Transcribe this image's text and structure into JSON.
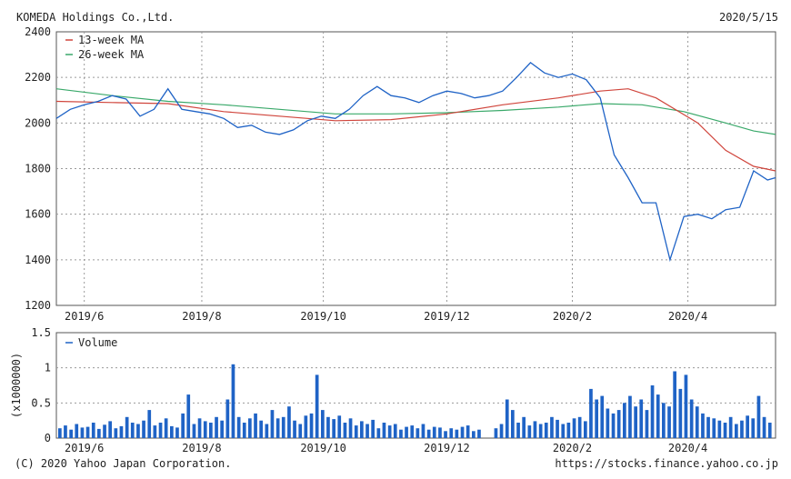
{
  "header": {
    "company": "KOMEDA Holdings Co.,Ltd.",
    "date": "2020/5/15"
  },
  "footer": {
    "copyright": "(C) 2020 Yahoo Japan Corporation.",
    "url": "https://stocks.finance.yahoo.co.jp"
  },
  "colors": {
    "price": "#1f63c6",
    "ma13": "#d0453c",
    "ma26": "#3aa96a",
    "volume": "#1f63c6",
    "grid": "#9a9a9a"
  },
  "chart_data": [
    {
      "type": "line",
      "title": "",
      "x_range": [
        "2019-05-20",
        "2020-05-15"
      ],
      "ylim": [
        1200,
        2400
      ],
      "yticks": [
        1200,
        1400,
        1600,
        1800,
        2000,
        2200,
        2400
      ],
      "x_tick_labels": [
        {
          "label": "2019/6",
          "date": "2019-06-03"
        },
        {
          "label": "2019/8",
          "date": "2019-08-01"
        },
        {
          "label": "2019/10",
          "date": "2019-10-01"
        },
        {
          "label": "2019/12",
          "date": "2019-12-02"
        },
        {
          "label": "2020/2",
          "date": "2020-02-03"
        },
        {
          "label": "2020/4",
          "date": "2020-04-01"
        }
      ],
      "grid": true,
      "legend_position": "top-left",
      "series": [
        {
          "name": "",
          "kind": "price",
          "points": [
            [
              "2019-05-20",
              2020
            ],
            [
              "2019-05-27",
              2060
            ],
            [
              "2019-06-03",
              2080
            ],
            [
              "2019-06-10",
              2095
            ],
            [
              "2019-06-17",
              2120
            ],
            [
              "2019-06-24",
              2105
            ],
            [
              "2019-07-01",
              2030
            ],
            [
              "2019-07-08",
              2060
            ],
            [
              "2019-07-15",
              2150
            ],
            [
              "2019-07-22",
              2060
            ],
            [
              "2019-07-29",
              2050
            ],
            [
              "2019-08-05",
              2040
            ],
            [
              "2019-08-12",
              2020
            ],
            [
              "2019-08-19",
              1980
            ],
            [
              "2019-08-26",
              1990
            ],
            [
              "2019-09-02",
              1960
            ],
            [
              "2019-09-09",
              1950
            ],
            [
              "2019-09-16",
              1970
            ],
            [
              "2019-09-23",
              2010
            ],
            [
              "2019-09-30",
              2030
            ],
            [
              "2019-10-07",
              2020
            ],
            [
              "2019-10-14",
              2060
            ],
            [
              "2019-10-21",
              2120
            ],
            [
              "2019-10-28",
              2160
            ],
            [
              "2019-11-04",
              2120
            ],
            [
              "2019-11-11",
              2110
            ],
            [
              "2019-11-18",
              2090
            ],
            [
              "2019-11-25",
              2120
            ],
            [
              "2019-12-02",
              2140
            ],
            [
              "2019-12-09",
              2130
            ],
            [
              "2019-12-16",
              2110
            ],
            [
              "2019-12-23",
              2120
            ],
            [
              "2019-12-30",
              2140
            ],
            [
              "2020-01-06",
              2200
            ],
            [
              "2020-01-13",
              2265
            ],
            [
              "2020-01-20",
              2220
            ],
            [
              "2020-01-27",
              2200
            ],
            [
              "2020-02-03",
              2215
            ],
            [
              "2020-02-10",
              2190
            ],
            [
              "2020-02-17",
              2110
            ],
            [
              "2020-02-24",
              1860
            ],
            [
              "2020-03-02",
              1760
            ],
            [
              "2020-03-09",
              1650
            ],
            [
              "2020-03-16",
              1650
            ],
            [
              "2020-03-23",
              1400
            ],
            [
              "2020-03-30",
              1590
            ],
            [
              "2020-04-06",
              1600
            ],
            [
              "2020-04-13",
              1580
            ],
            [
              "2020-04-20",
              1620
            ],
            [
              "2020-04-27",
              1630
            ],
            [
              "2020-05-04",
              1790
            ],
            [
              "2020-05-11",
              1750
            ],
            [
              "2020-05-15",
              1760
            ]
          ]
        },
        {
          "name": "13-week MA",
          "kind": "ma13",
          "points": [
            [
              "2019-05-20",
              2095
            ],
            [
              "2019-06-17",
              2090
            ],
            [
              "2019-07-15",
              2085
            ],
            [
              "2019-08-12",
              2050
            ],
            [
              "2019-09-09",
              2030
            ],
            [
              "2019-10-07",
              2010
            ],
            [
              "2019-11-04",
              2015
            ],
            [
              "2019-12-02",
              2040
            ],
            [
              "2019-12-30",
              2080
            ],
            [
              "2020-01-27",
              2110
            ],
            [
              "2020-02-17",
              2140
            ],
            [
              "2020-03-02",
              2150
            ],
            [
              "2020-03-16",
              2110
            ],
            [
              "2020-04-06",
              2000
            ],
            [
              "2020-04-20",
              1880
            ],
            [
              "2020-05-04",
              1810
            ],
            [
              "2020-05-15",
              1790
            ]
          ]
        },
        {
          "name": "26-week MA",
          "kind": "ma26",
          "points": [
            [
              "2019-05-20",
              2150
            ],
            [
              "2019-06-17",
              2120
            ],
            [
              "2019-07-15",
              2095
            ],
            [
              "2019-08-12",
              2080
            ],
            [
              "2019-09-09",
              2060
            ],
            [
              "2019-10-07",
              2040
            ],
            [
              "2019-11-04",
              2040
            ],
            [
              "2019-12-02",
              2045
            ],
            [
              "2019-12-30",
              2055
            ],
            [
              "2020-01-27",
              2070
            ],
            [
              "2020-02-17",
              2085
            ],
            [
              "2020-03-09",
              2080
            ],
            [
              "2020-03-30",
              2050
            ],
            [
              "2020-04-20",
              2000
            ],
            [
              "2020-05-04",
              1965
            ],
            [
              "2020-05-15",
              1950
            ]
          ]
        }
      ]
    },
    {
      "type": "bar",
      "title": "",
      "ylabel": "(x1000000)",
      "ylim": [
        0,
        1.5
      ],
      "yticks": [
        0,
        0.5,
        1,
        1.5
      ],
      "x_tick_labels": [
        "2019/6",
        "2019/8",
        "2019/10",
        "2019/12",
        "2020/2",
        "2020/4"
      ],
      "grid": true,
      "legend_position": "top-left",
      "series": [
        {
          "name": "Volume",
          "values": [
            0.14,
            0.18,
            0.12,
            0.2,
            0.15,
            0.16,
            0.22,
            0.13,
            0.19,
            0.24,
            0.14,
            0.17,
            0.3,
            0.22,
            0.2,
            0.25,
            0.4,
            0.18,
            0.22,
            0.28,
            0.17,
            0.15,
            0.35,
            0.62,
            0.2,
            0.28,
            0.24,
            0.22,
            0.3,
            0.25,
            0.55,
            1.05,
            0.3,
            0.22,
            0.28,
            0.35,
            0.25,
            0.2,
            0.4,
            0.28,
            0.3,
            0.45,
            0.25,
            0.2,
            0.32,
            0.35,
            0.9,
            0.4,
            0.3,
            0.27,
            0.32,
            0.22,
            0.28,
            0.18,
            0.24,
            0.2,
            0.26,
            0.14,
            0.22,
            0.18,
            0.2,
            0.12,
            0.16,
            0.18,
            0.14,
            0.2,
            0.12,
            0.16,
            0.15,
            0.1,
            0.14,
            0.12,
            0.16,
            0.18,
            0.1,
            0.12,
            0.0,
            0.0,
            0.14,
            0.2,
            0.55,
            0.4,
            0.22,
            0.3,
            0.18,
            0.24,
            0.2,
            0.22,
            0.3,
            0.26,
            0.2,
            0.22,
            0.28,
            0.3,
            0.24,
            0.7,
            0.55,
            0.6,
            0.42,
            0.35,
            0.4,
            0.5,
            0.6,
            0.45,
            0.55,
            0.4,
            0.75,
            0.62,
            0.5,
            0.45,
            0.95,
            0.7,
            0.9,
            0.55,
            0.45,
            0.35,
            0.3,
            0.28,
            0.25,
            0.22,
            0.3,
            0.2,
            0.25,
            0.32,
            0.28,
            0.6,
            0.3,
            0.22
          ]
        }
      ]
    }
  ]
}
